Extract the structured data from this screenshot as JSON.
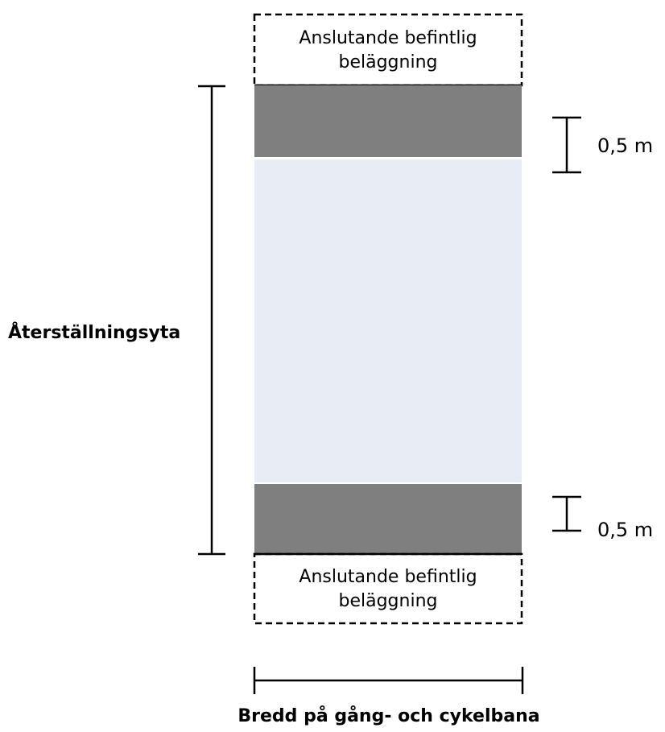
{
  "diagram": {
    "top_box": {
      "line1": "Anslutande befintlig",
      "line2": "beläggning"
    },
    "bottom_box": {
      "line1": "Anslutande befintlig",
      "line2": "beläggning"
    },
    "top_strip_dimension": "0,5 m",
    "bottom_strip_dimension": "0,5 m",
    "restoration_area_label": "Återställningsyta",
    "width_label": "Bredd på gång- och cykelbana",
    "colors": {
      "dark_strip": "#7f7f7f",
      "light_area": "#e8ecf4",
      "lines": "#000000"
    }
  }
}
